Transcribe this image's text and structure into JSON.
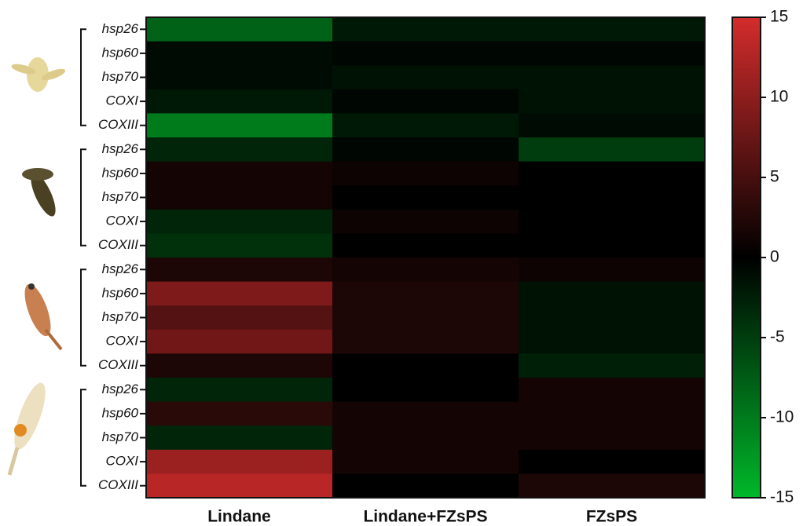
{
  "chart_data": {
    "type": "heatmap",
    "rows": [
      "hsp26",
      "hsp60",
      "hsp70",
      "COXI",
      "COXIII",
      "hsp26",
      "hsp60",
      "hsp70",
      "COXI",
      "COXIII",
      "hsp26",
      "hsp60",
      "hsp70",
      "COXI",
      "COXIII",
      "hsp26",
      "hsp60",
      "hsp70",
      "COXI",
      "COXIII"
    ],
    "columns": [
      "Lindane",
      "Lindane+FZsPS",
      "FZsPS"
    ],
    "values": [
      [
        -8,
        -2,
        -2
      ],
      [
        -1,
        -0.5,
        -0.5
      ],
      [
        -1,
        -1.5,
        -1.5
      ],
      [
        -2,
        -0.5,
        -1.5
      ],
      [
        -10,
        -2,
        -1
      ],
      [
        -3,
        -0.5,
        -5
      ],
      [
        1.5,
        1,
        0
      ],
      [
        1.5,
        0,
        0
      ],
      [
        -3,
        1,
        0
      ],
      [
        -4,
        0,
        0
      ],
      [
        2,
        1.5,
        1
      ],
      [
        9,
        2,
        -1.5
      ],
      [
        6,
        2,
        -1.5
      ],
      [
        8,
        2,
        -1.5
      ],
      [
        2,
        0,
        -2.5
      ],
      [
        -3,
        0,
        1.5
      ],
      [
        3,
        1.5,
        1.5
      ],
      [
        -3,
        1.5,
        1.5
      ],
      [
        11,
        1.5,
        0
      ],
      [
        13,
        0,
        2
      ]
    ],
    "colorscale": [
      "#00b82a",
      "#000000",
      "#d42c2c"
    ],
    "zlim": [
      -15,
      15
    ],
    "zticks": [
      -15,
      -10,
      -5,
      0,
      5,
      10,
      15
    ]
  }
}
